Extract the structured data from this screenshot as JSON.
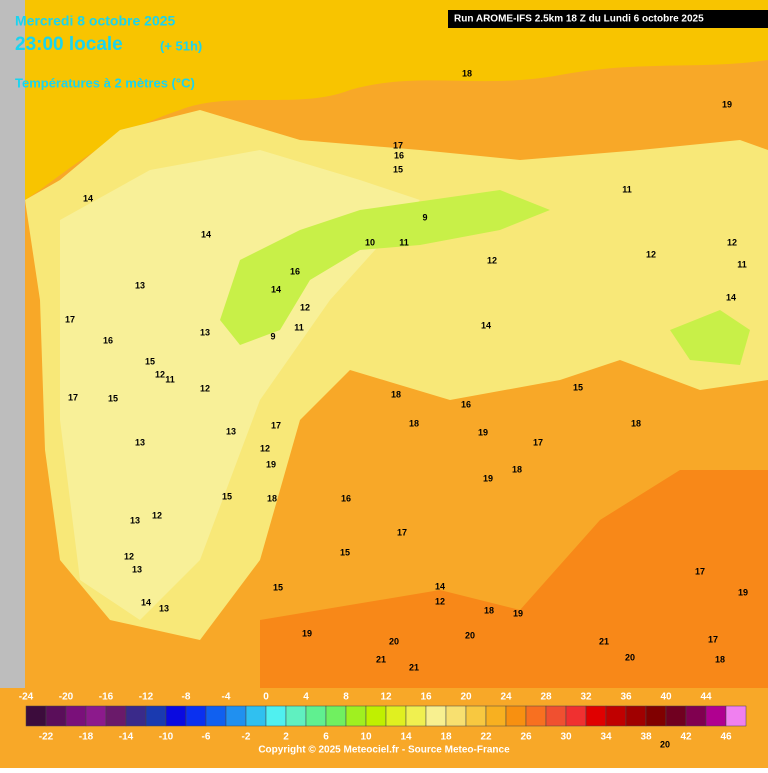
{
  "header": {
    "date": "Mercredi 8 octobre 2025",
    "time": "23:00 locale",
    "lead": "(+ 51h)",
    "variable": "Températures à 2 mètres (°C)",
    "run": "Run AROME-IFS 2.5km 18 Z du Lundi 6 octobre 2025"
  },
  "legend": {
    "values": [
      -24,
      -22,
      -20,
      -18,
      -16,
      -14,
      -12,
      -10,
      -8,
      -6,
      -4,
      -2,
      0,
      2,
      4,
      6,
      8,
      10,
      12,
      14,
      16,
      18,
      20,
      22,
      24,
      26,
      28,
      30,
      32,
      34,
      36,
      38,
      40,
      42,
      44,
      46
    ],
    "colors": [
      "#3c0c3c",
      "#5a0e5a",
      "#7a107a",
      "#8c1a8c",
      "#6a1a6a",
      "#3a2a8a",
      "#1a3ab0",
      "#0a0ae0",
      "#0a30f0",
      "#1060f0",
      "#2090f0",
      "#30c0f0",
      "#50f0f0",
      "#60f0c0",
      "#60f090",
      "#70f060",
      "#a0f020",
      "#c0f000",
      "#e0f020",
      "#f0f050",
      "#f8f090",
      "#f8e070",
      "#f8c840",
      "#f8b020",
      "#f89010",
      "#f87020",
      "#f05030",
      "#f03030",
      "#e00000",
      "#c00000",
      "#a00000",
      "#800000",
      "#700020",
      "#800050",
      "#b00090",
      "#f080f0"
    ]
  },
  "contour_labels": [
    18,
    19,
    17,
    16,
    15,
    14,
    14,
    13,
    11,
    9,
    10,
    11,
    12,
    12,
    12,
    11,
    14,
    16,
    14,
    12,
    11,
    9,
    13,
    17,
    16,
    15,
    12,
    11,
    12,
    17,
    15,
    14,
    18,
    16,
    15,
    13,
    17,
    12,
    19,
    18,
    15,
    18,
    19,
    17,
    18,
    19,
    18,
    16,
    17,
    13,
    12,
    13,
    15,
    12,
    13,
    14,
    13,
    15,
    14,
    12,
    18,
    19,
    19,
    20,
    20,
    21,
    21,
    21,
    20,
    17,
    19,
    17,
    18,
    20
  ],
  "footer": "Copyright © 2025 Meteociel.fr - Source Meteo-France"
}
